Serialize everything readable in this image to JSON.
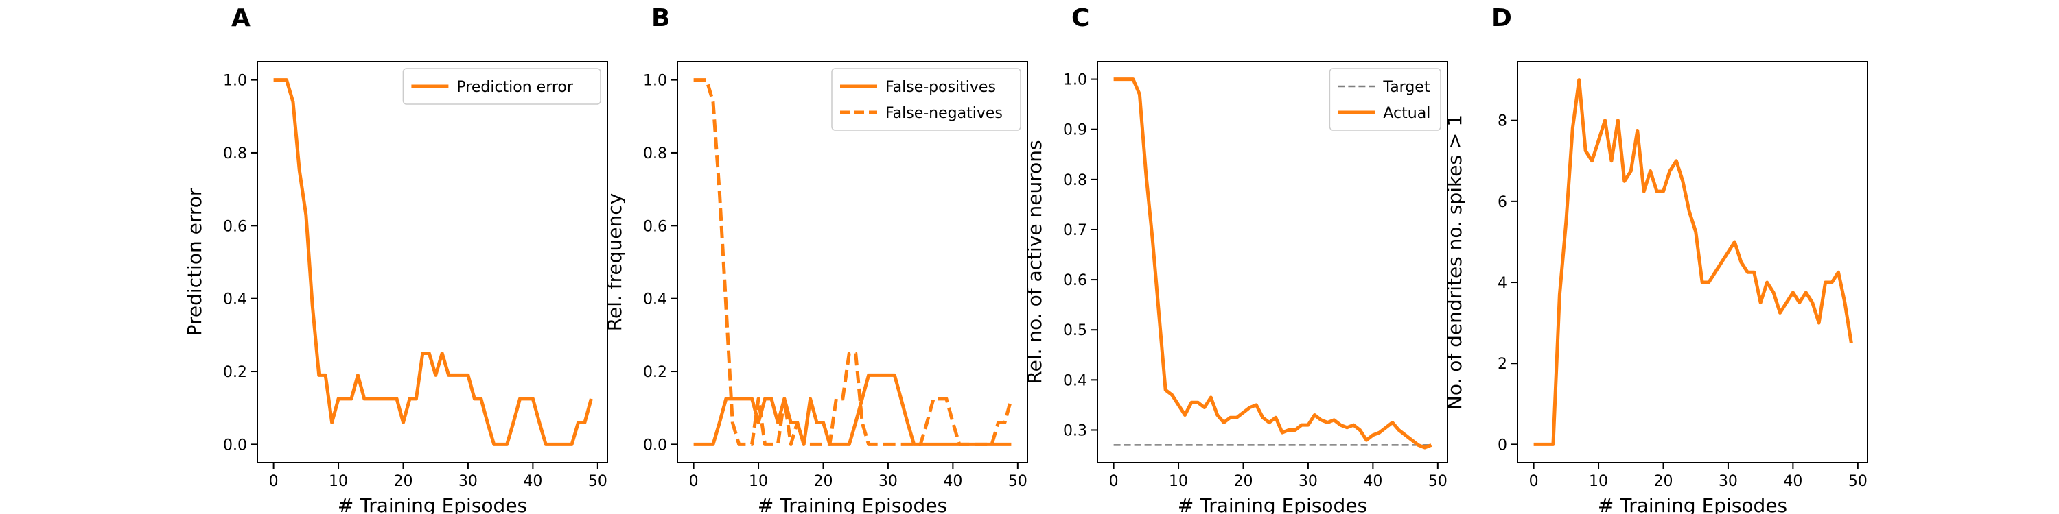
{
  "colors": {
    "series": "#ff7f0e",
    "target": "#7f7f7f"
  },
  "chart_data": [
    {
      "panel": "A",
      "type": "line",
      "xlabel": "# Training Episodes",
      "ylabel": "Prediction error",
      "xlim": [
        -2.5,
        51.5
      ],
      "ylim": [
        -0.05,
        1.05
      ],
      "xticks": [
        0,
        10,
        20,
        30,
        40,
        50
      ],
      "yticks": [
        0.0,
        0.2,
        0.4,
        0.6,
        0.8,
        1.0
      ],
      "ytick_labels": [
        "0.0",
        "0.2",
        "0.4",
        "0.6",
        "0.8",
        "1.0"
      ],
      "legend_position": "top-right",
      "x": [
        0,
        1,
        2,
        3,
        4,
        5,
        6,
        7,
        8,
        9,
        10,
        11,
        12,
        13,
        14,
        15,
        16,
        17,
        18,
        19,
        20,
        21,
        22,
        23,
        24,
        25,
        26,
        27,
        28,
        29,
        30,
        31,
        32,
        33,
        34,
        35,
        36,
        37,
        38,
        39,
        40,
        41,
        42,
        43,
        44,
        45,
        46,
        47,
        48,
        49
      ],
      "series": [
        {
          "name": "Prediction error",
          "style": "solid",
          "values": [
            1.0,
            1.0,
            1.0,
            0.94,
            0.75,
            0.63,
            0.38,
            0.19,
            0.19,
            0.06,
            0.125,
            0.125,
            0.125,
            0.19,
            0.125,
            0.125,
            0.125,
            0.125,
            0.125,
            0.125,
            0.06,
            0.125,
            0.125,
            0.25,
            0.25,
            0.19,
            0.25,
            0.19,
            0.19,
            0.19,
            0.19,
            0.125,
            0.125,
            0.06,
            0.0,
            0.0,
            0.0,
            0.06,
            0.125,
            0.125,
            0.125,
            0.06,
            0.0,
            0.0,
            0.0,
            0.0,
            0.0,
            0.06,
            0.06,
            0.125
          ]
        }
      ]
    },
    {
      "panel": "B",
      "type": "line",
      "xlabel": "# Training Episodes",
      "ylabel": "Rel. frequency",
      "xlim": [
        -2.5,
        51.5
      ],
      "ylim": [
        -0.05,
        1.05
      ],
      "xticks": [
        0,
        10,
        20,
        30,
        40,
        50
      ],
      "yticks": [
        0.0,
        0.2,
        0.4,
        0.6,
        0.8,
        1.0
      ],
      "ytick_labels": [
        "0.0",
        "0.2",
        "0.4",
        "0.6",
        "0.8",
        "1.0"
      ],
      "legend_position": "top-right",
      "x": [
        0,
        1,
        2,
        3,
        4,
        5,
        6,
        7,
        8,
        9,
        10,
        11,
        12,
        13,
        14,
        15,
        16,
        17,
        18,
        19,
        20,
        21,
        22,
        23,
        24,
        25,
        26,
        27,
        28,
        29,
        30,
        31,
        32,
        33,
        34,
        35,
        36,
        37,
        38,
        39,
        40,
        41,
        42,
        43,
        44,
        45,
        46,
        47,
        48,
        49
      ],
      "series": [
        {
          "name": "False-positives",
          "style": "solid",
          "values": [
            0,
            0,
            0,
            0,
            0.06,
            0.125,
            0.125,
            0.125,
            0.125,
            0.125,
            0.06,
            0.125,
            0.125,
            0.06,
            0.125,
            0.06,
            0.06,
            0,
            0.125,
            0.06,
            0.06,
            0,
            0,
            0,
            0,
            0.06,
            0.125,
            0.19,
            0.19,
            0.19,
            0.19,
            0.19,
            0.125,
            0.06,
            0,
            0,
            0,
            0,
            0,
            0,
            0,
            0,
            0,
            0,
            0,
            0,
            0,
            0,
            0,
            0
          ]
        },
        {
          "name": "False-negatives",
          "style": "dashed",
          "values": [
            1.0,
            1.0,
            1.0,
            0.94,
            0.69,
            0.38,
            0.06,
            0,
            0,
            0,
            0.125,
            0,
            0,
            0,
            0.125,
            0,
            0.06,
            0,
            0,
            0,
            0,
            0,
            0.125,
            0.125,
            0.25,
            0.25,
            0.06,
            0,
            0,
            0,
            0,
            0,
            0,
            0,
            0,
            0,
            0.06,
            0.125,
            0.125,
            0.125,
            0.06,
            0,
            0,
            0,
            0,
            0,
            0,
            0.06,
            0.06,
            0.125
          ]
        }
      ]
    },
    {
      "panel": "C",
      "type": "line",
      "xlabel": "# Training Episodes",
      "ylabel": "Rel. no. of active neurons",
      "xlim": [
        -2.5,
        51.5
      ],
      "ylim": [
        0.235,
        1.035
      ],
      "xticks": [
        0,
        10,
        20,
        30,
        40,
        50
      ],
      "yticks": [
        0.3,
        0.4,
        0.5,
        0.6,
        0.7,
        0.8,
        0.9,
        1.0
      ],
      "ytick_labels": [
        "0.3",
        "0.4",
        "0.5",
        "0.6",
        "0.7",
        "0.8",
        "0.9",
        "1.0"
      ],
      "legend_position": "top-right",
      "x": [
        0,
        1,
        2,
        3,
        4,
        5,
        6,
        7,
        8,
        9,
        10,
        11,
        12,
        13,
        14,
        15,
        16,
        17,
        18,
        19,
        20,
        21,
        22,
        23,
        24,
        25,
        26,
        27,
        28,
        29,
        30,
        31,
        32,
        33,
        34,
        35,
        36,
        37,
        38,
        39,
        40,
        41,
        42,
        43,
        44,
        45,
        46,
        47,
        48,
        49
      ],
      "series": [
        {
          "name": "Target",
          "style": "dashed-thin",
          "values_constant": 0.27
        },
        {
          "name": "Actual",
          "style": "solid",
          "values": [
            1.0,
            1.0,
            1.0,
            1.0,
            0.97,
            0.81,
            0.68,
            0.53,
            0.38,
            0.37,
            0.35,
            0.33,
            0.355,
            0.355,
            0.345,
            0.365,
            0.33,
            0.315,
            0.325,
            0.325,
            0.335,
            0.345,
            0.35,
            0.325,
            0.315,
            0.325,
            0.295,
            0.3,
            0.3,
            0.31,
            0.31,
            0.33,
            0.32,
            0.315,
            0.32,
            0.31,
            0.305,
            0.31,
            0.3,
            0.28,
            0.29,
            0.295,
            0.305,
            0.315,
            0.3,
            0.29,
            0.28,
            0.27,
            0.265,
            0.27
          ]
        }
      ]
    },
    {
      "panel": "D",
      "type": "line",
      "xlabel": "# Training Episodes",
      "ylabel": "No. of dendrites no. spikes > 1",
      "xlim": [
        -2.5,
        51.5
      ],
      "ylim": [
        -0.45,
        9.45
      ],
      "xticks": [
        0,
        10,
        20,
        30,
        40,
        50
      ],
      "yticks": [
        0,
        2,
        4,
        6,
        8
      ],
      "ytick_labels": [
        "0",
        "2",
        "4",
        "6",
        "8"
      ],
      "legend_position": "none",
      "x": [
        0,
        1,
        2,
        3,
        4,
        5,
        6,
        7,
        8,
        9,
        10,
        11,
        12,
        13,
        14,
        15,
        16,
        17,
        18,
        19,
        20,
        21,
        22,
        23,
        24,
        25,
        26,
        27,
        28,
        29,
        30,
        31,
        32,
        33,
        34,
        35,
        36,
        37,
        38,
        39,
        40,
        41,
        42,
        43,
        44,
        45,
        46,
        47,
        48,
        49
      ],
      "series": [
        {
          "name": "",
          "style": "solid",
          "values": [
            0,
            0,
            0,
            0,
            3.7,
            5.5,
            7.8,
            9.0,
            7.25,
            7.0,
            7.5,
            8.0,
            7.0,
            8.0,
            6.5,
            6.75,
            7.75,
            6.25,
            6.75,
            6.25,
            6.25,
            6.75,
            7.0,
            6.5,
            5.75,
            5.25,
            4.0,
            4.0,
            4.25,
            4.5,
            4.75,
            5.0,
            4.5,
            4.25,
            4.25,
            3.5,
            4.0,
            3.75,
            3.25,
            3.5,
            3.75,
            3.5,
            3.75,
            3.5,
            3.0,
            4.0,
            4.0,
            4.25,
            3.5,
            2.5
          ]
        }
      ]
    }
  ]
}
